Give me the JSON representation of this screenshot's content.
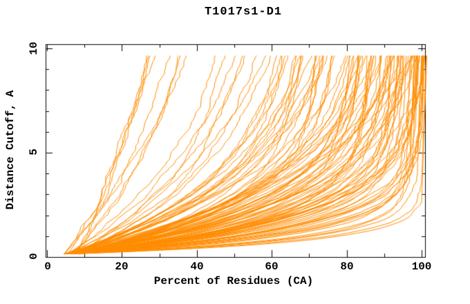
{
  "chart_data": {
    "type": "line",
    "title": "T1017s1-D1",
    "xlabel": "Percent of Residues (CA)",
    "ylabel": "Distance Cutoff, A",
    "xlim": [
      0,
      101
    ],
    "ylim": [
      0,
      10.2
    ],
    "xticks": [
      0,
      20,
      40,
      60,
      80,
      100
    ],
    "xtick_labels": [
      "0",
      "20",
      "40",
      "60",
      "80",
      "100"
    ],
    "x_minor_ticks": [
      10,
      30,
      50,
      70,
      90
    ],
    "yticks": [
      0,
      5,
      10
    ],
    "ytick_labels": [
      "0",
      "5",
      "10"
    ],
    "y_minor_ticks": [
      1,
      2,
      3,
      4,
      6,
      7,
      8,
      9
    ],
    "grid": false,
    "legend": null,
    "background": "#ffffff",
    "axis_color": "#000000",
    "series_color": "#ff8c00",
    "curve_y_start": 0.15,
    "curve_y_end": 9.7,
    "curve_x_start_range": [
      4.5,
      8.0
    ],
    "curves_comment": "each curve = [final_percent_at_cutoff_9.7, rate_tau, seed]; x(y)=x0+(xf-x0)*(1-exp(-(y-y0)/tau))/(1-exp(-(ymax-y0)/tau)) with small monotone jitter",
    "curves": [
      [
        27,
        9,
        11
      ],
      [
        29,
        8,
        12
      ],
      [
        30,
        10,
        13
      ],
      [
        32,
        7.5,
        14
      ],
      [
        34,
        9,
        15
      ],
      [
        35,
        8,
        16
      ],
      [
        37,
        7,
        17
      ],
      [
        26,
        8.5,
        18
      ],
      [
        46,
        6,
        21
      ],
      [
        48,
        5,
        22
      ],
      [
        50,
        6.5,
        23
      ],
      [
        52,
        4,
        24
      ],
      [
        54,
        5.5,
        25
      ],
      [
        56,
        4.5,
        26
      ],
      [
        58,
        6,
        27
      ],
      [
        60,
        3.5,
        28
      ],
      [
        61,
        5,
        29
      ],
      [
        62,
        4,
        30
      ],
      [
        63,
        4.5,
        31
      ],
      [
        64,
        3,
        32
      ],
      [
        65,
        5,
        33
      ],
      [
        66,
        2.5,
        34
      ],
      [
        67,
        4,
        35
      ],
      [
        68,
        3.2,
        36
      ],
      [
        69,
        4.8,
        37
      ],
      [
        70,
        2.2,
        38
      ],
      [
        71,
        3.6,
        39
      ],
      [
        72,
        4.2,
        40
      ],
      [
        73,
        2.8,
        41
      ],
      [
        74,
        3.9,
        42
      ],
      [
        75,
        2.4,
        43
      ],
      [
        76,
        4.6,
        44
      ],
      [
        77,
        3.1,
        45
      ],
      [
        78,
        2.6,
        46
      ],
      [
        79,
        4.1,
        47
      ],
      [
        80,
        3.4,
        48
      ],
      [
        66,
        3.8,
        49
      ],
      [
        74,
        4.9,
        50
      ],
      [
        81,
        2.9,
        51
      ],
      [
        82,
        1.8,
        52
      ],
      [
        83,
        3.5,
        53
      ],
      [
        84,
        2.2,
        54
      ],
      [
        85,
        1.5,
        55
      ],
      [
        85,
        3.8,
        56
      ],
      [
        86,
        2.6,
        57
      ],
      [
        87,
        1.9,
        58
      ],
      [
        88,
        3.2,
        59
      ],
      [
        88,
        1.6,
        60
      ],
      [
        89,
        2.4,
        61
      ],
      [
        90,
        3.9,
        62
      ],
      [
        90,
        1.4,
        63
      ],
      [
        91,
        2.8,
        64
      ],
      [
        91,
        1.7,
        65
      ],
      [
        92,
        3.4,
        66
      ],
      [
        92,
        2.1,
        67
      ],
      [
        93,
        1.5,
        68
      ],
      [
        93,
        2.9,
        69
      ],
      [
        84,
        3.1,
        70
      ],
      [
        86,
        3.6,
        71
      ],
      [
        89,
        1.8,
        72
      ],
      [
        81,
        2.3,
        73
      ],
      [
        87,
        3.9,
        74
      ],
      [
        92,
        1.6,
        75
      ],
      [
        94,
        1.2,
        76
      ],
      [
        95,
        2.5,
        77
      ],
      [
        96,
        0.7,
        78
      ],
      [
        97,
        1.8,
        79
      ],
      [
        98,
        1.1,
        80
      ],
      [
        99,
        2.2,
        81
      ],
      [
        100,
        0.6,
        82
      ],
      [
        100,
        1.5,
        83
      ],
      [
        99,
        1.0,
        84
      ],
      [
        98,
        2.8,
        85
      ],
      [
        97,
        1.3,
        86
      ],
      [
        100,
        2.0,
        87
      ],
      [
        99,
        0.7,
        88
      ],
      [
        98,
        1.6,
        89
      ],
      [
        100,
        1.1,
        90
      ],
      [
        96,
        2.4,
        91
      ],
      [
        95,
        1.4,
        92
      ],
      [
        100,
        0.65,
        93
      ],
      [
        99,
        1.9,
        94
      ],
      [
        98,
        1.2,
        95
      ],
      [
        100,
        2.6,
        96
      ],
      [
        97,
        0.75,
        97
      ],
      [
        100,
        1.35,
        98
      ],
      [
        99,
        1.6,
        99
      ],
      [
        100,
        1.05,
        100
      ],
      [
        96,
        1.7,
        101
      ],
      [
        100,
        3.0,
        102
      ],
      [
        100,
        4.5,
        103
      ],
      [
        97,
        5.0,
        104
      ],
      [
        83,
        2.0,
        105
      ],
      [
        85,
        2.7,
        106
      ],
      [
        88,
        2.3,
        107
      ],
      [
        90,
        2.0,
        108
      ],
      [
        94,
        1.6,
        109
      ],
      [
        95,
        1.9,
        110
      ],
      [
        96,
        1.3,
        111
      ],
      [
        97,
        2.1,
        112
      ],
      [
        98,
        0.9,
        113
      ],
      [
        99,
        1.25,
        114
      ],
      [
        100,
        1.8,
        115
      ],
      [
        93,
        3.3,
        116
      ],
      [
        91,
        2.5,
        117
      ],
      [
        89,
        3.0,
        118
      ],
      [
        87,
        2.2,
        119
      ],
      [
        86,
        1.6,
        120
      ],
      [
        82,
        2.6,
        121
      ],
      [
        78,
        3.0,
        122
      ],
      [
        72,
        2.9,
        123
      ],
      [
        68,
        2.1,
        124
      ]
    ]
  }
}
